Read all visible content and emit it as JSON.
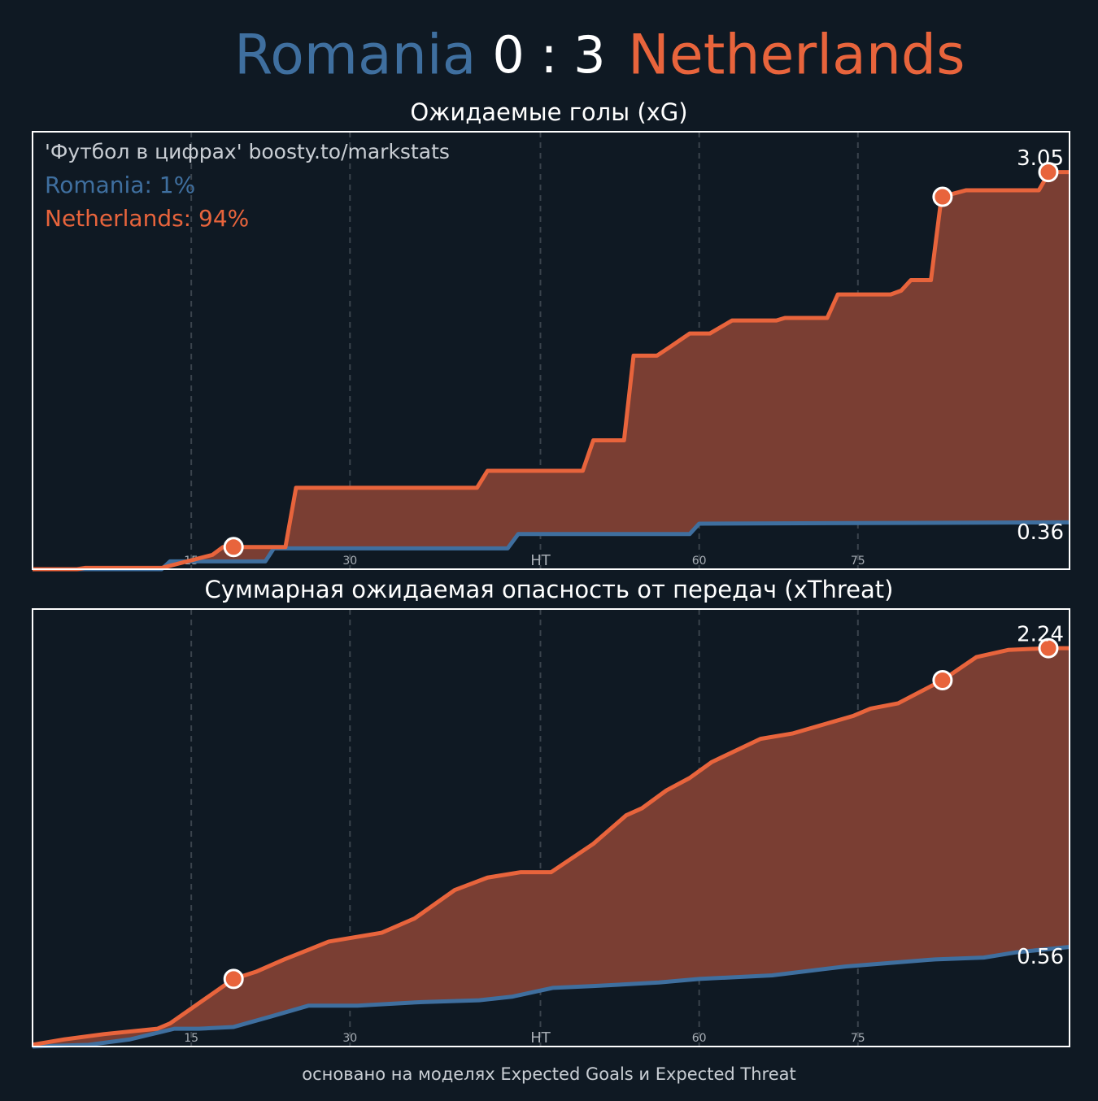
{
  "header": {
    "home": "Romania",
    "score": "0 : 3",
    "away": "Netherlands",
    "home_color": "#3f6f9f",
    "away_color": "#e8643c"
  },
  "chart_data": [
    {
      "type": "line",
      "title": "Ожидаемые голы (xG)",
      "annotations": [
        {
          "text": "'Футбол в цифрах' boosty.to/markstats",
          "color": "#c9ced4"
        },
        {
          "text": "Romania: 1%",
          "color": "#3f6f9f"
        },
        {
          "text": "Netherlands: 94%",
          "color": "#e8643c"
        }
      ],
      "xlim": [
        0,
        98
      ],
      "ylim": [
        0,
        3.36
      ],
      "xticks": [
        15,
        30,
        {
          "value": 48,
          "label": "HT"
        },
        {
          "value": 63,
          "label": "60"
        },
        {
          "value": 78,
          "label": "75"
        }
      ],
      "grid": true,
      "fill_color": "#7a3e33",
      "series": [
        {
          "color": "#3f6f9f",
          "x": [
            0,
            12.2,
            13,
            22,
            22.8,
            44.9,
            45.9,
            62.1,
            63,
            98
          ],
          "values": [
            0,
            0,
            0.06,
            0.06,
            0.16,
            0.16,
            0.27,
            0.27,
            0.35,
            0.36
          ]
        },
        {
          "color": "#e8643c",
          "x": [
            0,
            4.2,
            5,
            12.2,
            17,
            18,
            23.9,
            24.9,
            42,
            43,
            52,
            53,
            55.9,
            56.8,
            59,
            60.3,
            62.1,
            64,
            66.1,
            70.3,
            71.1,
            75.1,
            76.1,
            81.1,
            82.1,
            83,
            84.9,
            85.9,
            88.2,
            95.1,
            96.1,
            98
          ],
          "values": [
            0,
            0,
            0.01,
            0.01,
            0.11,
            0.17,
            0.17,
            0.625,
            0.625,
            0.756,
            0.756,
            0.99,
            0.99,
            1.64,
            1.64,
            1.71,
            1.81,
            1.81,
            1.91,
            1.91,
            1.93,
            1.93,
            2.11,
            2.11,
            2.14,
            2.22,
            2.22,
            2.86,
            2.91,
            2.91,
            3.05,
            3.05
          ]
        }
      ],
      "markers": [
        {
          "x": 19,
          "y": 0.17
        },
        {
          "x": 86,
          "y": 2.86
        },
        {
          "x": 96,
          "y": 3.05
        }
      ]
    },
    {
      "type": "line",
      "title": "Суммарная ожидаемая опасность от передач (xThreat)",
      "xlim": [
        0,
        98
      ],
      "ylim": [
        0,
        2.46
      ],
      "xticks": [
        15,
        30,
        {
          "value": 48,
          "label": "HT"
        },
        {
          "value": 63,
          "label": "60"
        },
        {
          "value": 78,
          "label": "75"
        }
      ],
      "grid": true,
      "fill_color": "#7a3e33",
      "series": [
        {
          "color": "#3f6f9f",
          "x": [
            0,
            5.3,
            9.2,
            13.4,
            15.7,
            19,
            22.6,
            26.1,
            30.7,
            36.8,
            42.2,
            45.3,
            49.2,
            53,
            59.2,
            63,
            69.9,
            76.8,
            85.3,
            89.9,
            93,
            98
          ],
          "values": [
            0,
            0.01,
            0.04,
            0.1,
            0.1,
            0.11,
            0.17,
            0.23,
            0.23,
            0.25,
            0.26,
            0.28,
            0.33,
            0.34,
            0.36,
            0.38,
            0.4,
            0.45,
            0.49,
            0.5,
            0.53,
            0.56
          ]
        },
        {
          "color": "#e8643c",
          "x": [
            0,
            3,
            6.8,
            11.8,
            13,
            19,
            21.1,
            23.8,
            28,
            33,
            36.1,
            39.9,
            43,
            46.1,
            49,
            53,
            56.1,
            57.6,
            59.9,
            62.1,
            64.2,
            68.8,
            71.8,
            77.6,
            79.2,
            81.8,
            86,
            89.2,
            92.2,
            96,
            98
          ],
          "values": [
            0.01,
            0.04,
            0.07,
            0.1,
            0.13,
            0.38,
            0.42,
            0.49,
            0.59,
            0.64,
            0.72,
            0.88,
            0.95,
            0.98,
            0.98,
            1.14,
            1.3,
            1.34,
            1.44,
            1.51,
            1.6,
            1.73,
            1.76,
            1.86,
            1.9,
            1.93,
            2.06,
            2.19,
            2.23,
            2.24,
            2.24
          ]
        }
      ],
      "markers": [
        {
          "x": 19,
          "y": 0.38
        },
        {
          "x": 86,
          "y": 2.06
        },
        {
          "x": 96,
          "y": 2.24
        }
      ]
    }
  ],
  "footer": "основано на моделях Expected Goals и Expected Threat"
}
